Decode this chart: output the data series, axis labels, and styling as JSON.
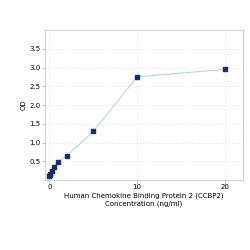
{
  "x": [
    0,
    0.0625,
    0.125,
    0.25,
    0.5,
    1,
    2,
    5,
    10,
    20
  ],
  "y": [
    0.1,
    0.13,
    0.17,
    0.25,
    0.35,
    0.48,
    0.65,
    1.3,
    2.75,
    2.95
  ],
  "line_color": "#b8d4e8",
  "marker_color": "#1a3060",
  "marker_size": 3.5,
  "xlabel_line1": "Human Chemokine Binding Protein 2 (CCBP2)",
  "xlabel_line2": "Concentration (ng/ml)",
  "ylabel": "OD",
  "xlim": [
    -0.5,
    22
  ],
  "ylim": [
    0,
    4
  ],
  "yticks": [
    0.5,
    1,
    1.5,
    2,
    2.5,
    3,
    3.5
  ],
  "xticks": [
    0,
    10,
    20
  ],
  "grid_color": "#d8d8d8",
  "bg_color": "#ffffff",
  "label_fontsize": 5,
  "tick_fontsize": 5,
  "ylabel_fontsize": 5
}
